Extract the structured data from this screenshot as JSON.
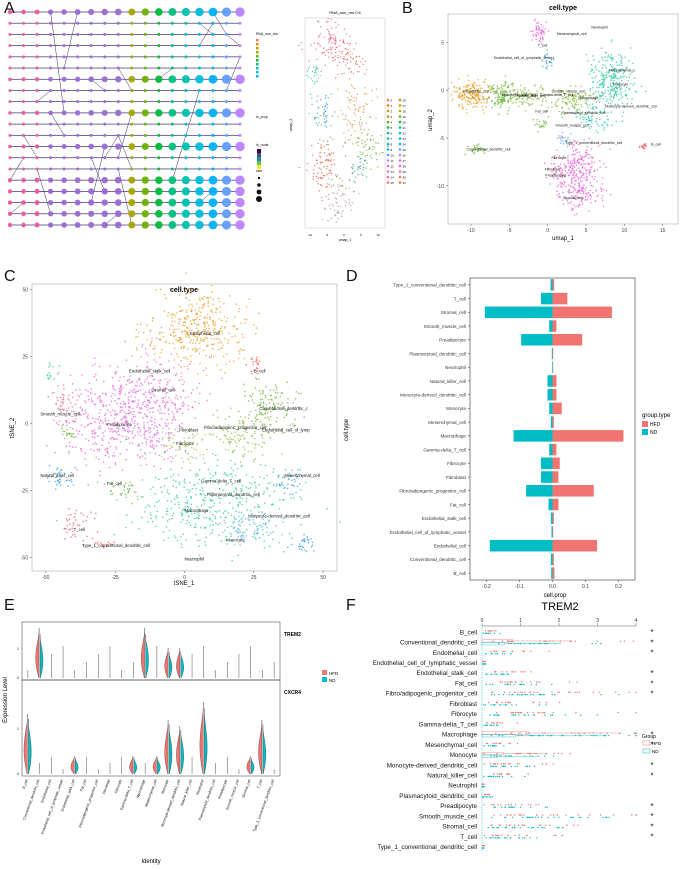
{
  "panels": {
    "A": "A",
    "B": "B",
    "C": "C",
    "D": "D",
    "E": "E",
    "F": "F"
  },
  "colors": {
    "hfd": "#f07470",
    "nd": "#00bcc4",
    "orange": "#e3a02a",
    "pink": "#e85ed3",
    "green": "#6ab43a",
    "teal": "#2ec7a2",
    "blue": "#5aa4e0",
    "red": "#e8554f"
  },
  "panelA": {
    "umap_title": "RNA_snn_res.0.6",
    "legend_titles": [
      "RNA_snn_res.",
      "in_prop",
      "in_node",
      "size"
    ],
    "cluster_ids": [
      "0",
      "1",
      "2",
      "3",
      "4",
      "5",
      "6",
      "7",
      "8",
      "9",
      "10",
      "11",
      "12",
      "13",
      "14",
      "15",
      "16",
      "17",
      "18",
      "19",
      "20",
      "21",
      "22",
      "23",
      "24",
      "25",
      "26",
      "27",
      "28",
      "29",
      "30",
      "31"
    ],
    "xlabel": "umap_1",
    "ylabel": "umap_2"
  },
  "panelB": {
    "title": "cell.type",
    "xlabel": "umap_1",
    "ylabel": "umap_2",
    "x_ticks": [
      "-10",
      "-5",
      "0",
      "5",
      "10",
      "15"
    ],
    "y_ticks": [
      "-10",
      "-5",
      "0",
      "5"
    ],
    "labels": [
      "Neutrophil",
      "Mesenchymal_cell",
      "T_cell",
      "Endothelial_cell_of_lymphatic_vessel",
      "Mesenchymal_c",
      "Monocyte",
      "Endothelial_cell",
      "Smooth_muscle_cell",
      "Endothelial_stalk_cell",
      "Natural_killer_cell",
      "Gamma-delta_T_cell",
      "Macrophage",
      "Monocyte-derived_dendritic_cell",
      "Fat_cell",
      "Plasmacytoid_dendritic_cell",
      "Smooth_muscle_cell",
      "Type_1_conventional_dendritic_cell",
      "B_cell",
      "Conventional_dendritic_cell",
      "Fibrocyte",
      "Fibroblast",
      "Preadipocyte",
      "Stromal_cell"
    ]
  },
  "panelC": {
    "title": "cell.type",
    "xlabel": "tSNE_1",
    "ylabel": "tSNE_2",
    "x_ticks": [
      "-50",
      "-25",
      "0",
      "25",
      "50"
    ],
    "y_ticks": [
      "-50",
      "-25",
      "0",
      "25",
      "50"
    ],
    "labels": [
      "Endothelial_cell",
      "Endothelial_stalk_cell",
      "B_cell",
      "Stromal_cell",
      "Smooth_muscle_cell",
      "Conventional_dendritic_c",
      "Preadipocyte",
      "Fibroblast",
      "Fibro/adipogenic_progenitor_cell",
      "Endothelial_cell_of_lymp",
      "Fibrocyte",
      "Natural_killer_cell",
      "Mesenchymal_cell",
      "Fat_cell",
      "Gamma-delta_T_cell",
      "Plasmacytoid_dendritic_cell",
      "Macrophage",
      "T_cell",
      "Monocyte-derived_dendritic_cell",
      "Type_1_conventional_dendritic_cell",
      "Monocyte",
      "Neutrophil"
    ]
  },
  "chart_data": [
    {
      "type": "bar",
      "panel": "D",
      "orientation": "horizontal",
      "categories": [
        "Type_1_conventional_dendritic_cell",
        "T_cell",
        "Stromal_cell",
        "Smooth_muscle_cell",
        "Preadipocyte",
        "Plasmacytoid_dendritic_cell",
        "Neutrophil",
        "Natural_killer_cell",
        "Monocyte-derived_dendritic_cell",
        "Monocyte",
        "Mesenchymal_cell",
        "Macrophage",
        "Gamma-delta_T_cell",
        "Fibrocyte",
        "Fibroblast",
        "Fibro/adipogenic_progenitor_cell",
        "Fat_cell",
        "Endothelial_stalk_cell",
        "Endothelial_cell_of_lymphatic_vessel",
        "Endothelial_cell",
        "Conventional_dendritic_cell",
        "B_cell"
      ],
      "series": [
        {
          "name": "HFD",
          "values": [
            0.005,
            0.045,
            0.18,
            0.012,
            0.09,
            0.002,
            0.001,
            0.012,
            0.012,
            0.028,
            0.004,
            0.215,
            0.012,
            0.022,
            0.018,
            0.125,
            0.018,
            0.004,
            0.002,
            0.135,
            0.004,
            0.006
          ]
        },
        {
          "name": "ND",
          "values": [
            -0.006,
            -0.035,
            -0.205,
            -0.01,
            -0.095,
            -0.002,
            -0.001,
            -0.015,
            -0.015,
            -0.01,
            -0.005,
            -0.118,
            -0.01,
            -0.035,
            -0.035,
            -0.08,
            -0.012,
            -0.005,
            -0.003,
            -0.19,
            -0.005,
            -0.004
          ]
        }
      ],
      "xlabel": "cell.prop",
      "ylabel": "cell.type",
      "xlim": [
        -0.25,
        0.25
      ],
      "x_ticks": [
        "-0.2",
        "-0.1",
        "0.0",
        "0.1",
        "0.2"
      ],
      "legend_title": "group.type",
      "legend_position": "right"
    },
    {
      "type": "violin",
      "panel": "E",
      "genes": [
        "TREM2",
        "CXCR4"
      ],
      "identities": [
        "B_cell",
        "Conventional_dendritic_cell",
        "Endothelial_cell",
        "Endothelial_cell_of_lymphatic_vessel",
        "Endothelial_stalk_cell",
        "Fat_cell",
        "Fibro/adipogenic_progenitor_cell",
        "Fibroblast",
        "Fibrocyte",
        "Gamma-delta_T_cell",
        "Macrophage",
        "Mesenchymal_cell",
        "Monocyte",
        "Monocyte-derived_dendritic_cell",
        "Natural_killer_cell",
        "Neutrophil",
        "Plasmacytoid_dendritic_cell",
        "Preadipocyte",
        "Smooth_muscle_cell",
        "Stromal_cell",
        "T_cell",
        "Type_1_conventional_dendritic_cell"
      ],
      "trem2_peaks": [
        0.1,
        1.0,
        0.1,
        0.1,
        0.1,
        0.1,
        0.1,
        0.1,
        0.1,
        0.1,
        1.0,
        0.1,
        0.6,
        0.6,
        0.1,
        0.1,
        0.1,
        0.1,
        0.1,
        0.1,
        0.1,
        0.1
      ],
      "cxcr4_peaks": [
        1.0,
        0.1,
        0.1,
        0.1,
        0.3,
        0.1,
        0.1,
        0.1,
        0.1,
        0.3,
        0.1,
        0.3,
        0.9,
        0.8,
        0.1,
        1.2,
        0.2,
        0.1,
        0.1,
        0.3,
        0.9,
        0.1
      ],
      "ylabel": "Expression Level",
      "xlabel": "Identity",
      "y_ticks": [
        "0",
        "1"
      ],
      "legend": [
        "HFD",
        "ND"
      ]
    },
    {
      "type": "boxplot",
      "panel": "F",
      "title": "TREM2",
      "categories": [
        "B_cell",
        "Conventional_dendritic_cell",
        "Endothelial_cell",
        "Endothelial_cell_of_lymphatic_vessel",
        "Endothelial_stalk_cell",
        "Fat_cell",
        "Fibro/adipogenic_progenitor_cell",
        "Fibroblast",
        "Fibrocyte",
        "Gamma-delta_T_cell",
        "Macrophage",
        "Mesenchymal_cell",
        "Monocyte",
        "Monocyte-derived_dendritic_cell",
        "Natural_killer_cell",
        "Neutrophil",
        "Plasmacytoid_dendritic_cell",
        "Preadipocyte",
        "Smooth_muscle_cell",
        "Stromal_cell",
        "T_cell",
        "Type_1_conventional_dendritic_cell"
      ],
      "significant": [
        "*",
        "*",
        "*",
        "",
        "*",
        "*",
        "*",
        "",
        "",
        "",
        "*",
        "*",
        "",
        "*",
        "*",
        "",
        "",
        "*",
        "*",
        "*",
        "*",
        ""
      ],
      "x_ticks": [
        "0",
        "1",
        "2",
        "3",
        "4"
      ],
      "xlim": [
        0,
        4
      ],
      "legend_title": "Group",
      "legend": [
        "HFD",
        "ND"
      ]
    }
  ]
}
